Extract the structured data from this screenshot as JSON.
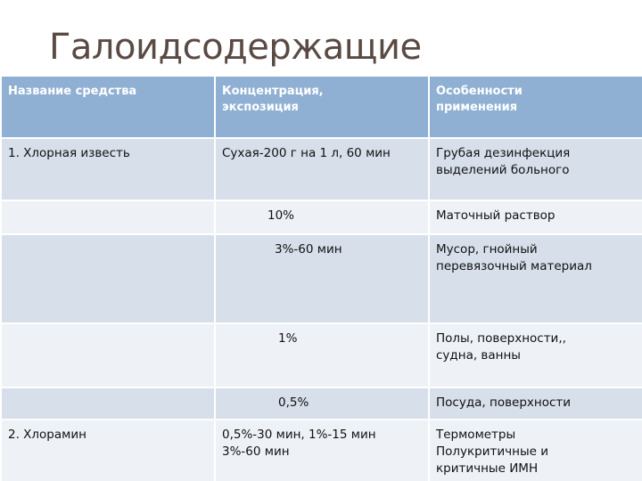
{
  "slide": {
    "title": "Галоидсодержащие"
  },
  "table": {
    "headers": [
      "Название средства",
      "Концентрация, экспозиция",
      "Особенности применения"
    ],
    "rows": [
      {
        "name": "1. Хлорная известь",
        "concentration": [
          "Сухая-200 г на 1 л, 60 мин"
        ],
        "features": [
          "Грубая дезинфекция",
          "выделений больного"
        ]
      },
      {
        "name": "",
        "concentration": [
          "10%"
        ],
        "features": [
          "Маточный раствор"
        ]
      },
      {
        "name": "",
        "concentration": [
          "3%-60 мин"
        ],
        "features": [
          "Мусор, гнойный",
          "перевязочный материал"
        ]
      },
      {
        "name": "",
        "concentration": [
          "1%"
        ],
        "features": [
          "Полы, поверхности,,",
          "судна, ванны"
        ]
      },
      {
        "name": "",
        "concentration": [
          "0,5%"
        ],
        "features": [
          "Посуда, поверхности"
        ]
      },
      {
        "name": "2. Хлорамин",
        "concentration": [
          "0,5%-30 мин, 1%-15 мин",
          "3%-60 мин"
        ],
        "features": [
          "Термометры",
          "Полукритичные и",
          "критичные ИМН"
        ]
      }
    ]
  }
}
